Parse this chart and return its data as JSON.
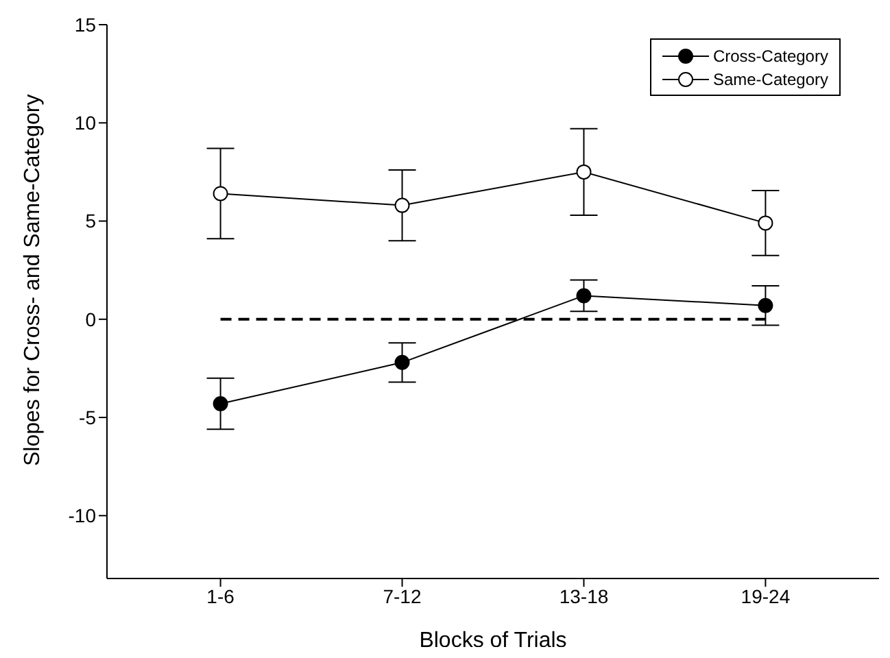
{
  "chart_data": {
    "type": "line",
    "xlabel": "Blocks of Trials",
    "ylabel": "Slopes for Cross- and Same-Category",
    "categories": [
      "1-6",
      "7-12",
      "13-18",
      "19-24"
    ],
    "series": [
      {
        "name": "Cross-Category",
        "color": "#000000",
        "values": [
          -4.3,
          -2.2,
          1.2,
          0.7
        ],
        "errors": [
          1.3,
          1.0,
          0.8,
          1.0
        ]
      },
      {
        "name": "Same-Category",
        "color": "#000000",
        "values": [
          6.4,
          5.8,
          7.5,
          4.9
        ],
        "errors": [
          2.3,
          1.8,
          2.2,
          1.65
        ]
      }
    ],
    "ylim": [
      -13.2,
      15
    ],
    "yticks": [
      15,
      10,
      5,
      0,
      -5,
      -10
    ],
    "ref_lines": [
      {
        "axis": "y",
        "value": 0,
        "color": "#000000",
        "line_style": "dashed"
      }
    ],
    "marker": "circle",
    "line_style": "solid",
    "grid": false,
    "legend": "top right"
  }
}
